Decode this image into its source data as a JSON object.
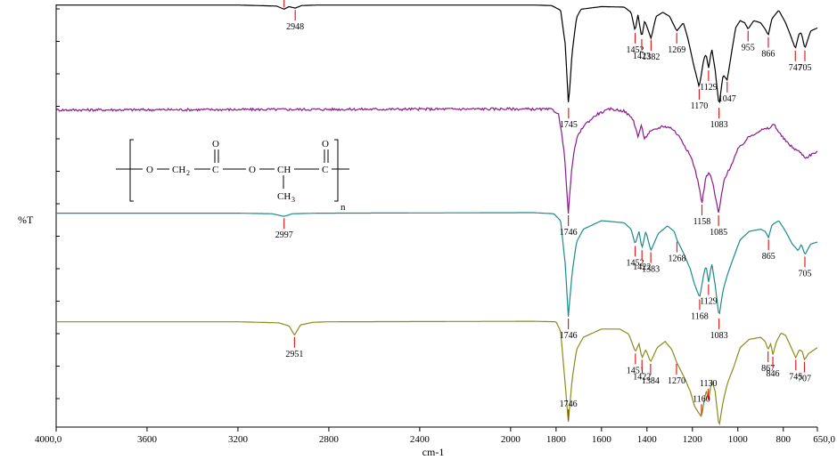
{
  "chart_data": {
    "type": "line",
    "title": "",
    "xlabel": "cm-1",
    "ylabel": "%T",
    "xlim": [
      4000,
      650
    ],
    "x_reversed": true,
    "x_ticks": [
      "4000,0",
      "3600",
      "3200",
      "2800",
      "2400",
      "2000",
      "1800",
      "1600",
      "1400",
      "1200",
      "1000",
      "800",
      "650,0"
    ],
    "x_tick_values": [
      4000,
      3600,
      3200,
      2800,
      2400,
      2000,
      1800,
      1600,
      1400,
      1200,
      1000,
      800,
      650
    ],
    "grid": false,
    "legend": "none",
    "series": [
      {
        "color": "#000000",
        "baseline": 0.97,
        "noise": 0.0,
        "points": [
          [
            4000,
            0.97
          ],
          [
            3200,
            0.97
          ],
          [
            3030,
            0.96
          ],
          [
            2997,
            0.93
          ],
          [
            2975,
            0.955
          ],
          [
            2948,
            0.94
          ],
          [
            2920,
            0.965
          ],
          [
            2850,
            0.97
          ],
          [
            1900,
            0.97
          ],
          [
            1820,
            0.965
          ],
          [
            1780,
            0.92
          ],
          [
            1760,
            0.6
          ],
          [
            1745,
            0.0
          ],
          [
            1730,
            0.5
          ],
          [
            1710,
            0.85
          ],
          [
            1690,
            0.93
          ],
          [
            1600,
            0.955
          ],
          [
            1500,
            0.95
          ],
          [
            1470,
            0.9
          ],
          [
            1452,
            0.72
          ],
          [
            1440,
            0.88
          ],
          [
            1423,
            0.66
          ],
          [
            1410,
            0.82
          ],
          [
            1382,
            0.65
          ],
          [
            1360,
            0.86
          ],
          [
            1330,
            0.9
          ],
          [
            1300,
            0.86
          ],
          [
            1269,
            0.72
          ],
          [
            1240,
            0.8
          ],
          [
            1220,
            0.65
          ],
          [
            1195,
            0.4
          ],
          [
            1170,
            0.18
          ],
          [
            1150,
            0.45
          ],
          [
            1140,
            0.5
          ],
          [
            1129,
            0.36
          ],
          [
            1115,
            0.55
          ],
          [
            1100,
            0.35
          ],
          [
            1083,
            0.0
          ],
          [
            1065,
            0.3
          ],
          [
            1047,
            0.25
          ],
          [
            1030,
            0.48
          ],
          [
            1010,
            0.75
          ],
          [
            990,
            0.82
          ],
          [
            970,
            0.8
          ],
          [
            955,
            0.74
          ],
          [
            930,
            0.82
          ],
          [
            900,
            0.8
          ],
          [
            880,
            0.74
          ],
          [
            866,
            0.68
          ],
          [
            850,
            0.84
          ],
          [
            820,
            0.92
          ],
          [
            790,
            0.8
          ],
          [
            765,
            0.66
          ],
          [
            747,
            0.55
          ],
          [
            730,
            0.7
          ],
          [
            720,
            0.7
          ],
          [
            705,
            0.55
          ],
          [
            680,
            0.72
          ],
          [
            650,
            0.75
          ]
        ],
        "peak_labels": [
          {
            "x": 2997,
            "text": "2997",
            "side": "above"
          },
          {
            "x": 2948,
            "text": "2948",
            "side": "below"
          },
          {
            "x": 1745,
            "text": "1745",
            "side": "below"
          },
          {
            "x": 1452,
            "text": "1452",
            "side": "below"
          },
          {
            "x": 1423,
            "text": "1423",
            "side": "below"
          },
          {
            "x": 1382,
            "text": "1382",
            "side": "below"
          },
          {
            "x": 1269,
            "text": "1269",
            "side": "below"
          },
          {
            "x": 1170,
            "text": "1170",
            "side": "below"
          },
          {
            "x": 1129,
            "text": "1129",
            "side": "below"
          },
          {
            "x": 1083,
            "text": "1083",
            "side": "below"
          },
          {
            "x": 1047,
            "text": "1047",
            "side": "below"
          },
          {
            "x": 955,
            "text": "955",
            "side": "below"
          },
          {
            "x": 866,
            "text": "866",
            "side": "below"
          },
          {
            "x": 747,
            "text": "747",
            "side": "below"
          },
          {
            "x": 705,
            "text": "705",
            "side": "below"
          }
        ]
      },
      {
        "color": "#8b1a8b",
        "baseline": 0.97,
        "noise": 0.012,
        "points": [
          [
            4000,
            0.97
          ],
          [
            2000,
            0.98
          ],
          [
            1820,
            0.975
          ],
          [
            1790,
            0.94
          ],
          [
            1765,
            0.6
          ],
          [
            1746,
            0.0
          ],
          [
            1730,
            0.45
          ],
          [
            1710,
            0.7
          ],
          [
            1680,
            0.82
          ],
          [
            1620,
            0.93
          ],
          [
            1560,
            0.98
          ],
          [
            1500,
            0.96
          ],
          [
            1460,
            0.88
          ],
          [
            1440,
            0.72
          ],
          [
            1425,
            0.82
          ],
          [
            1410,
            0.7
          ],
          [
            1390,
            0.76
          ],
          [
            1370,
            0.78
          ],
          [
            1330,
            0.82
          ],
          [
            1290,
            0.8
          ],
          [
            1250,
            0.7
          ],
          [
            1200,
            0.5
          ],
          [
            1175,
            0.3
          ],
          [
            1158,
            0.1
          ],
          [
            1140,
            0.35
          ],
          [
            1125,
            0.38
          ],
          [
            1110,
            0.28
          ],
          [
            1085,
            0.0
          ],
          [
            1060,
            0.32
          ],
          [
            1030,
            0.45
          ],
          [
            1000,
            0.6
          ],
          [
            950,
            0.72
          ],
          [
            900,
            0.78
          ],
          [
            860,
            0.8
          ],
          [
            840,
            0.84
          ],
          [
            820,
            0.76
          ],
          [
            790,
            0.68
          ],
          [
            760,
            0.62
          ],
          [
            730,
            0.58
          ],
          [
            700,
            0.52
          ],
          [
            680,
            0.55
          ],
          [
            650,
            0.58
          ]
        ],
        "peak_labels": [
          {
            "x": 1746,
            "text": "1746",
            "side": "below"
          },
          {
            "x": 1158,
            "text": "1158",
            "side": "below"
          },
          {
            "x": 1085,
            "text": "1085",
            "side": "below"
          }
        ]
      },
      {
        "color": "#1a8b8b",
        "baseline": 0.97,
        "noise": 0.0,
        "points": [
          [
            4000,
            0.97
          ],
          [
            3200,
            0.97
          ],
          [
            3050,
            0.965
          ],
          [
            2997,
            0.94
          ],
          [
            2960,
            0.965
          ],
          [
            2850,
            0.97
          ],
          [
            1900,
            0.975
          ],
          [
            1810,
            0.965
          ],
          [
            1780,
            0.9
          ],
          [
            1760,
            0.5
          ],
          [
            1746,
            0.0
          ],
          [
            1730,
            0.4
          ],
          [
            1710,
            0.7
          ],
          [
            1680,
            0.82
          ],
          [
            1600,
            0.9
          ],
          [
            1500,
            0.88
          ],
          [
            1470,
            0.82
          ],
          [
            1452,
            0.68
          ],
          [
            1435,
            0.8
          ],
          [
            1422,
            0.64
          ],
          [
            1405,
            0.8
          ],
          [
            1383,
            0.62
          ],
          [
            1350,
            0.78
          ],
          [
            1310,
            0.85
          ],
          [
            1280,
            0.8
          ],
          [
            1268,
            0.72
          ],
          [
            1240,
            0.6
          ],
          [
            1210,
            0.45
          ],
          [
            1190,
            0.3
          ],
          [
            1168,
            0.18
          ],
          [
            1150,
            0.4
          ],
          [
            1140,
            0.48
          ],
          [
            1129,
            0.32
          ],
          [
            1115,
            0.5
          ],
          [
            1100,
            0.3
          ],
          [
            1083,
            0.0
          ],
          [
            1065,
            0.25
          ],
          [
            1045,
            0.4
          ],
          [
            1020,
            0.55
          ],
          [
            990,
            0.72
          ],
          [
            950,
            0.8
          ],
          [
            900,
            0.82
          ],
          [
            880,
            0.8
          ],
          [
            865,
            0.74
          ],
          [
            850,
            0.86
          ],
          [
            820,
            0.9
          ],
          [
            790,
            0.8
          ],
          [
            760,
            0.68
          ],
          [
            735,
            0.62
          ],
          [
            720,
            0.68
          ],
          [
            705,
            0.58
          ],
          [
            680,
            0.68
          ],
          [
            650,
            0.7
          ]
        ],
        "peak_labels": [
          {
            "x": 2997,
            "text": "2997",
            "side": "below"
          },
          {
            "x": 1746,
            "text": "1746",
            "side": "below"
          },
          {
            "x": 1452,
            "text": "1452",
            "side": "below"
          },
          {
            "x": 1422,
            "text": "1422",
            "side": "below"
          },
          {
            "x": 1383,
            "text": "1383",
            "side": "below"
          },
          {
            "x": 1268,
            "text": "1268",
            "side": "below"
          },
          {
            "x": 1168,
            "text": "1168",
            "side": "below"
          },
          {
            "x": 1129,
            "text": "1129",
            "side": "below"
          },
          {
            "x": 1083,
            "text": "1083",
            "side": "below"
          },
          {
            "x": 865,
            "text": "865",
            "side": "below"
          },
          {
            "x": 705,
            "text": "705",
            "side": "below"
          }
        ]
      },
      {
        "color": "#8b8b1a",
        "baseline": 0.97,
        "noise": 0.0,
        "points": [
          [
            4000,
            0.97
          ],
          [
            3200,
            0.97
          ],
          [
            3020,
            0.96
          ],
          [
            2975,
            0.93
          ],
          [
            2951,
            0.84
          ],
          [
            2925,
            0.94
          ],
          [
            2870,
            0.965
          ],
          [
            2800,
            0.97
          ],
          [
            1900,
            0.975
          ],
          [
            1800,
            0.97
          ],
          [
            1780,
            0.88
          ],
          [
            1765,
            0.5
          ],
          [
            1746,
            0.0
          ],
          [
            1730,
            0.4
          ],
          [
            1710,
            0.7
          ],
          [
            1680,
            0.82
          ],
          [
            1600,
            0.9
          ],
          [
            1520,
            0.9
          ],
          [
            1480,
            0.85
          ],
          [
            1451,
            0.68
          ],
          [
            1435,
            0.76
          ],
          [
            1422,
            0.62
          ],
          [
            1405,
            0.7
          ],
          [
            1384,
            0.58
          ],
          [
            1355,
            0.72
          ],
          [
            1320,
            0.78
          ],
          [
            1290,
            0.7
          ],
          [
            1270,
            0.58
          ],
          [
            1240,
            0.45
          ],
          [
            1210,
            0.3
          ],
          [
            1190,
            0.15
          ],
          [
            1170,
            0.08
          ],
          [
            1160,
            0.05
          ],
          [
            1145,
            0.25
          ],
          [
            1138,
            0.3
          ],
          [
            1130,
            0.2
          ],
          [
            1115,
            0.4
          ],
          [
            1100,
            0.3
          ],
          [
            1083,
            -0.05
          ],
          [
            1065,
            0.2
          ],
          [
            1045,
            0.38
          ],
          [
            1020,
            0.52
          ],
          [
            990,
            0.72
          ],
          [
            950,
            0.8
          ],
          [
            900,
            0.82
          ],
          [
            880,
            0.78
          ],
          [
            867,
            0.7
          ],
          [
            855,
            0.76
          ],
          [
            846,
            0.65
          ],
          [
            830,
            0.78
          ],
          [
            810,
            0.86
          ],
          [
            790,
            0.84
          ],
          [
            765,
            0.72
          ],
          [
            745,
            0.62
          ],
          [
            730,
            0.7
          ],
          [
            715,
            0.68
          ],
          [
            707,
            0.6
          ],
          [
            690,
            0.66
          ],
          [
            650,
            0.72
          ]
        ],
        "peak_labels": [
          {
            "x": 2951,
            "text": "2951",
            "side": "below"
          },
          {
            "x": 1746,
            "text": "1746",
            "side": "above"
          },
          {
            "x": 1451,
            "text": "1451",
            "side": "below"
          },
          {
            "x": 1422,
            "text": "1422",
            "side": "below"
          },
          {
            "x": 1384,
            "text": "1384",
            "side": "below"
          },
          {
            "x": 1270,
            "text": "1270",
            "side": "below"
          },
          {
            "x": 1160,
            "text": "1160",
            "side": "above"
          },
          {
            "x": 1130,
            "text": "1130",
            "side": "above"
          },
          {
            "x": 867,
            "text": "867",
            "side": "below"
          },
          {
            "x": 846,
            "text": "846",
            "side": "below"
          },
          {
            "x": 745,
            "text": "745",
            "side": "below"
          },
          {
            "x": 707,
            "text": "707",
            "side": "below"
          }
        ]
      }
    ],
    "structure": {
      "atoms": [
        "O",
        "CH",
        "2",
        "C",
        "O",
        "O",
        "CH",
        "CH",
        "3",
        "C",
        "O",
        "n"
      ]
    }
  }
}
